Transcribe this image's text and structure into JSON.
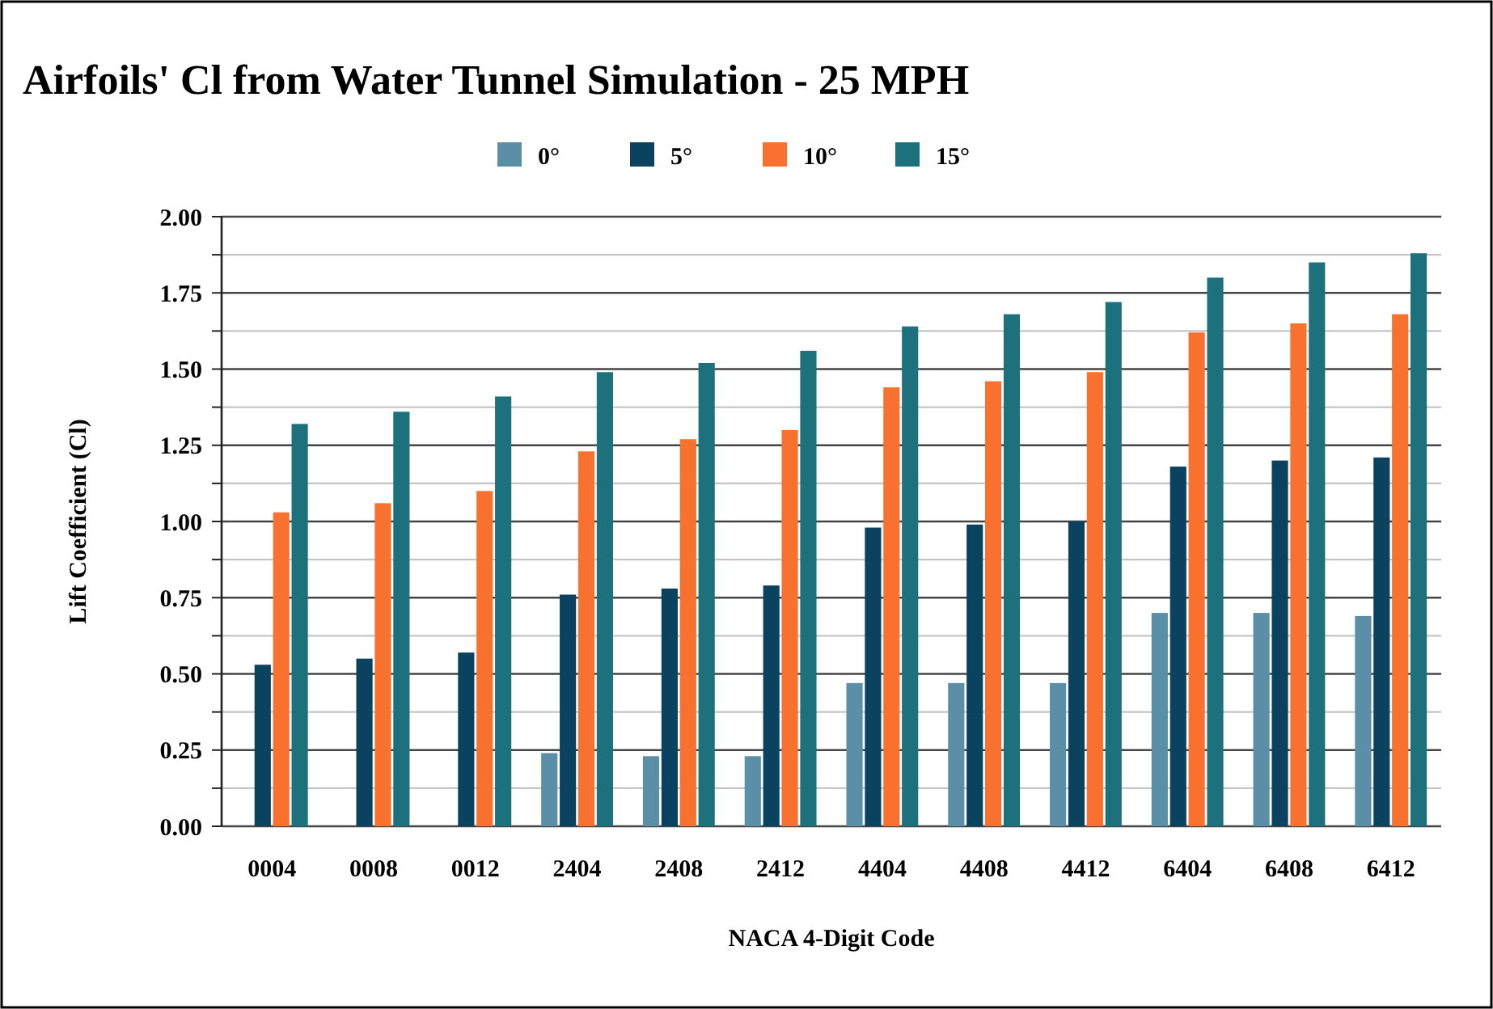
{
  "chart_data": {
    "type": "bar",
    "title": "Airfoils' Cl from Water Tunnel Simulation - 25 MPH",
    "xlabel": "NACA 4-Digit Code",
    "ylabel": "Lift Coefficient (Cl)",
    "categories": [
      "0004",
      "0008",
      "0012",
      "2404",
      "2408",
      "2412",
      "4404",
      "4408",
      "4412",
      "6404",
      "6408",
      "6412"
    ],
    "series": [
      {
        "name": "0°",
        "color": "#5b8fa8",
        "values": [
          0,
          0,
          0,
          0.24,
          0.23,
          0.23,
          0.47,
          0.47,
          0.47,
          0.7,
          0.7,
          0.69
        ]
      },
      {
        "name": "5°",
        "color": "#0a4260",
        "values": [
          0.53,
          0.55,
          0.57,
          0.76,
          0.78,
          0.79,
          0.98,
          0.99,
          1.0,
          1.18,
          1.2,
          1.21
        ]
      },
      {
        "name": "10°",
        "color": "#f9712e",
        "values": [
          1.03,
          1.06,
          1.1,
          1.23,
          1.27,
          1.3,
          1.44,
          1.46,
          1.49,
          1.62,
          1.65,
          1.68
        ]
      },
      {
        "name": "15°",
        "color": "#1d717c",
        "values": [
          1.32,
          1.36,
          1.41,
          1.49,
          1.52,
          1.56,
          1.64,
          1.68,
          1.72,
          1.8,
          1.85,
          1.88
        ]
      }
    ],
    "ylim": [
      0,
      2
    ],
    "yticks": [
      {
        "value": 0,
        "label": "0.00"
      },
      {
        "value": 0.125,
        "label": null
      },
      {
        "value": 0.25,
        "label": "0.25"
      },
      {
        "value": 0.375,
        "label": null
      },
      {
        "value": 0.5,
        "label": "0.50"
      },
      {
        "value": 0.625,
        "label": null
      },
      {
        "value": 0.75,
        "label": "0.75"
      },
      {
        "value": 0.875,
        "label": null
      },
      {
        "value": 1,
        "label": "1.00"
      },
      {
        "value": 1.125,
        "label": null
      },
      {
        "value": 1.25,
        "label": "1.25"
      },
      {
        "value": 1.375,
        "label": null
      },
      {
        "value": 1.5,
        "label": "1.50"
      },
      {
        "value": 1.625,
        "label": null
      },
      {
        "value": 1.75,
        "label": "1.75"
      },
      {
        "value": 1.875,
        "label": null
      },
      {
        "value": 2,
        "label": "2.00"
      }
    ],
    "grid": true,
    "legend": "top"
  }
}
